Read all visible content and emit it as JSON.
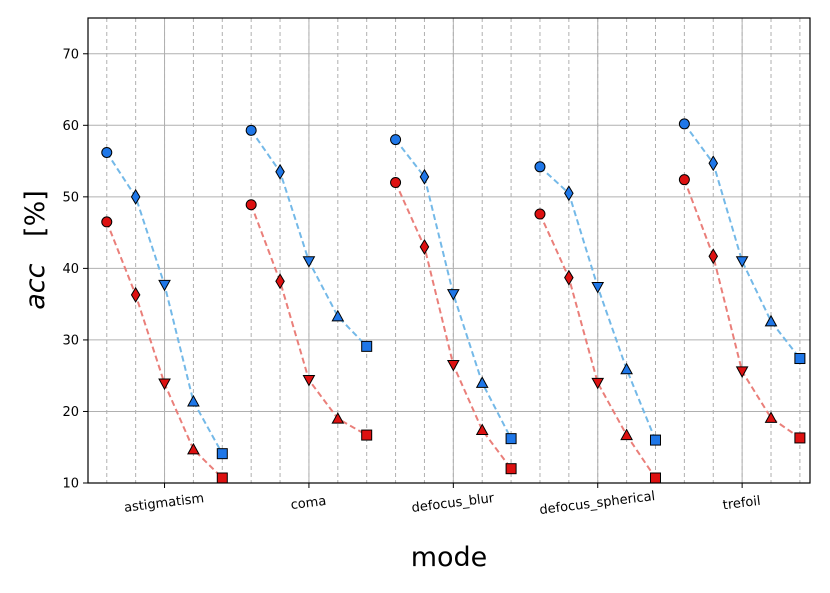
{
  "chart_data": {
    "type": "line",
    "xlabel": "mode",
    "ylabel_symbol": "acc",
    "ylabel_unit": "[%]",
    "ylim": [
      10,
      75
    ],
    "yticks": [
      10,
      20,
      30,
      40,
      50,
      60,
      70
    ],
    "grid": true,
    "categories": [
      "astigmatism",
      "coma",
      "defocus_blur",
      "defocus_spherical",
      "trefoil"
    ],
    "points_per_category": 5,
    "marker_sequence": [
      "circle",
      "diamond",
      "triangle-down",
      "triangle-up",
      "square"
    ],
    "series": [
      {
        "color": "#5dade2",
        "marker_fill": "#1f77e8",
        "line_color": "#74b9e8",
        "values": [
          [
            56.2,
            50.0,
            37.7,
            21.4,
            14.1
          ],
          [
            59.3,
            53.5,
            41.0,
            33.3,
            29.1
          ],
          [
            58.0,
            52.8,
            36.4,
            24.0,
            16.2
          ],
          [
            54.2,
            50.5,
            37.4,
            25.9,
            16.0
          ],
          [
            60.2,
            54.7,
            41.0,
            32.6,
            27.4
          ]
        ]
      },
      {
        "color": "#e57373",
        "marker_fill": "#dd1111",
        "line_color": "#ea7f7a",
        "values": [
          [
            46.5,
            36.3,
            23.9,
            14.7,
            10.7
          ],
          [
            48.9,
            38.2,
            24.4,
            19.0,
            16.7
          ],
          [
            52.0,
            43.0,
            26.5,
            17.4,
            12.0
          ],
          [
            47.6,
            38.7,
            24.0,
            16.7,
            10.7
          ],
          [
            52.4,
            41.7,
            25.6,
            19.1,
            16.3
          ]
        ]
      }
    ]
  }
}
